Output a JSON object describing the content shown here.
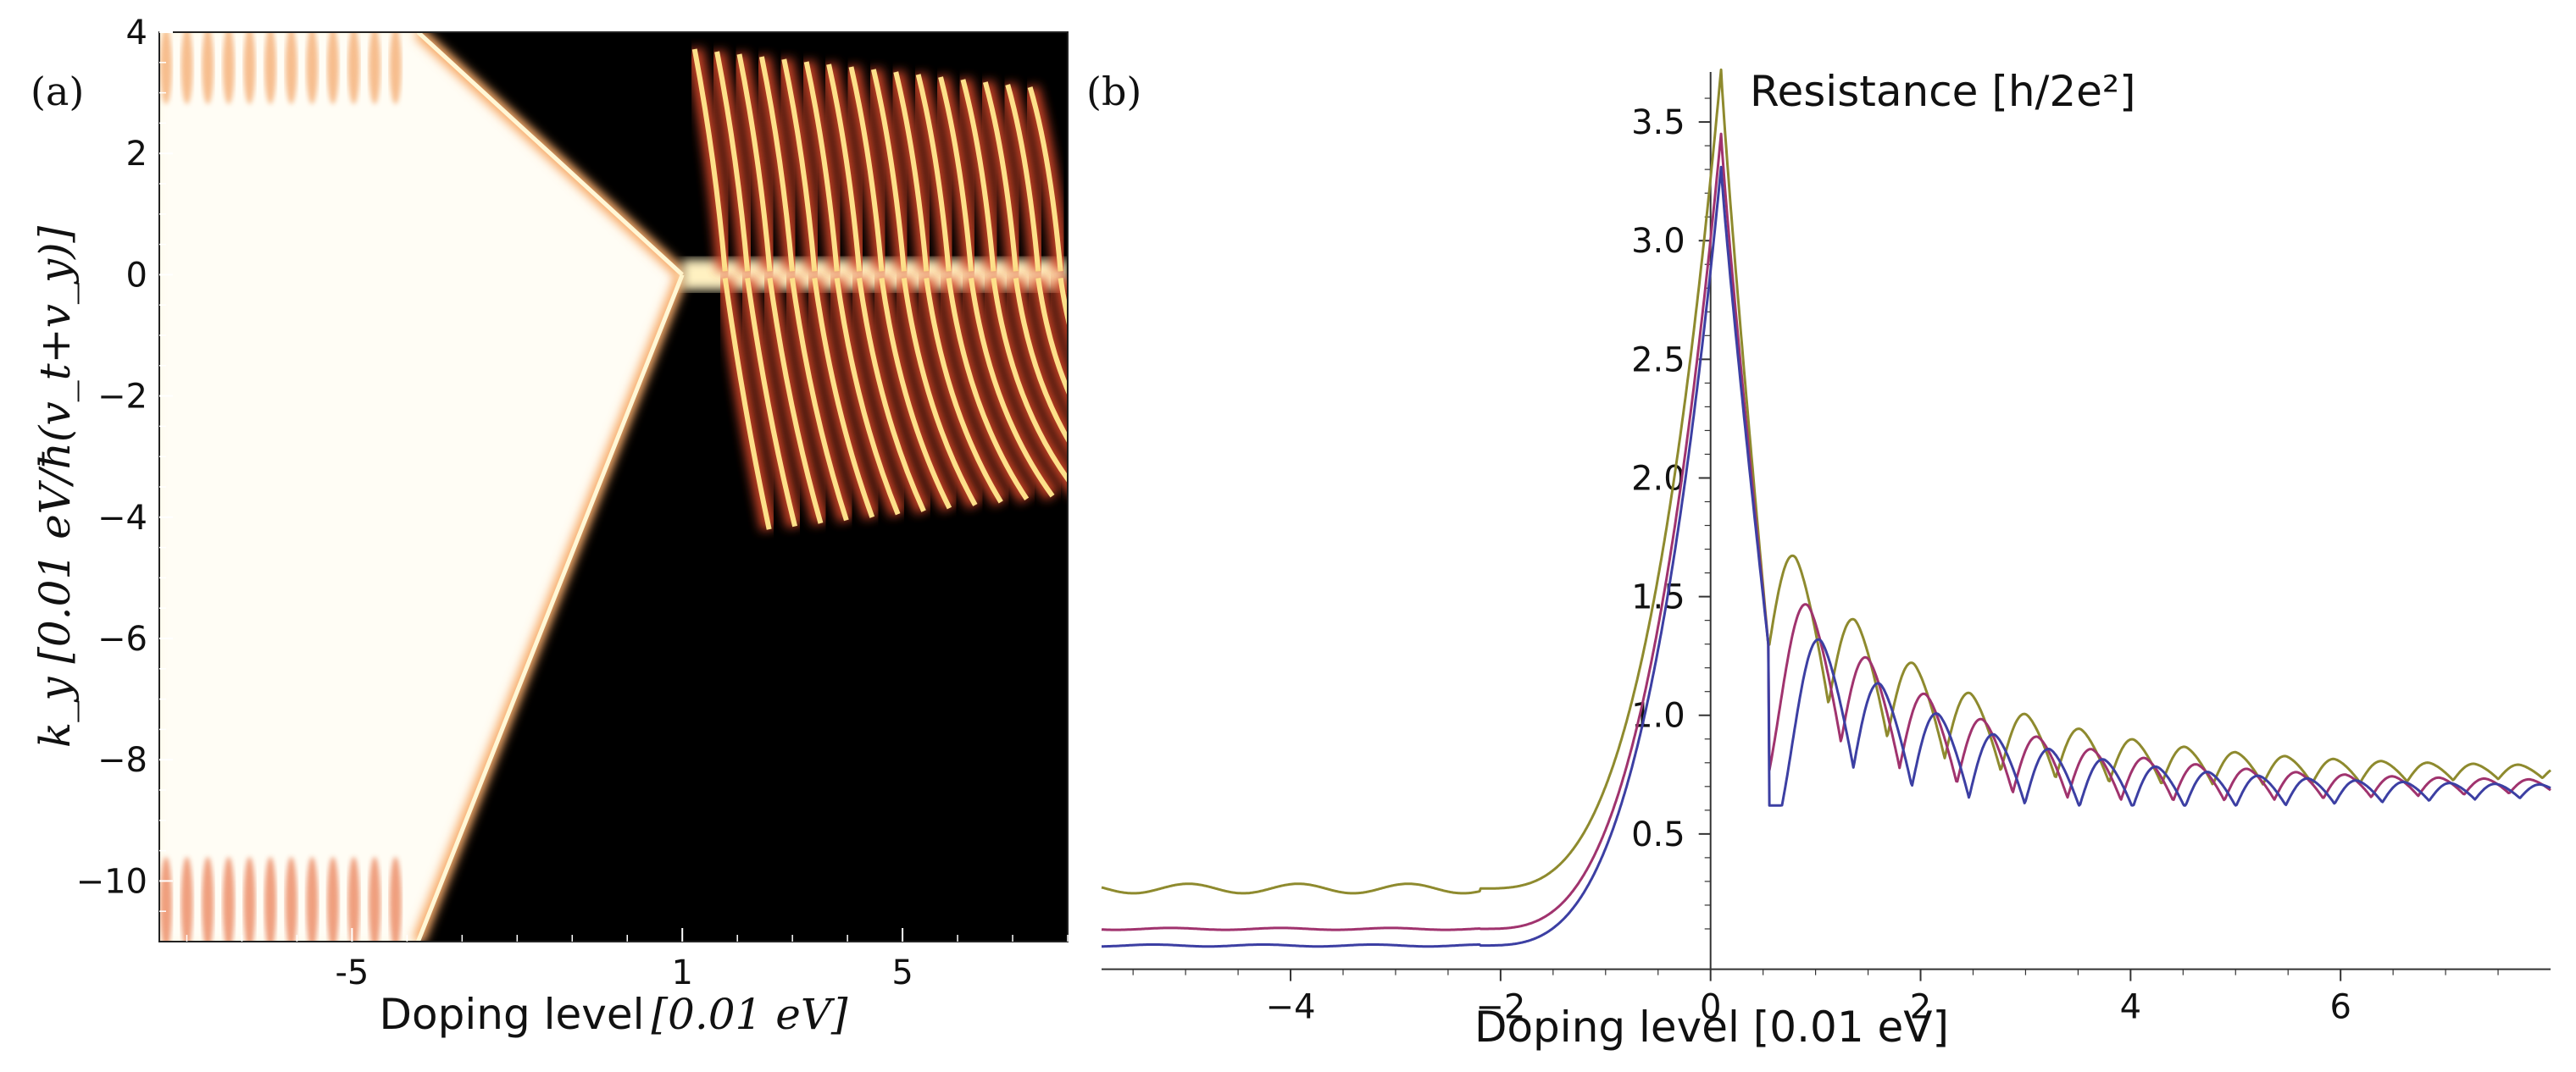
{
  "chart_data": [
    {
      "type": "heatmap",
      "panel_label": "(a)",
      "xlabel": "Doping level",
      "xlabel_unit": "[0.01 eV]",
      "ylabel": "k_y [0.01 eV/ħ(v_t+v_y)]",
      "xlim": [
        -8.5,
        8
      ],
      "ylim": [
        -11,
        4
      ],
      "x_ticks": [
        -5,
        1,
        5
      ],
      "y_ticks": [
        4,
        2,
        0,
        -2,
        -4,
        -6,
        -8,
        -10
      ],
      "x_tick_labels": [
        "-5",
        "1",
        "5"
      ],
      "y_tick_labels": [
        "4",
        "2",
        "0",
        "−2",
        "−4",
        "−6",
        "−8",
        "−10"
      ],
      "colormap": "inferno",
      "features": {
        "left_bright_region_edge_x": -3.8,
        "dirac_point": [
          1,
          0
        ],
        "upper_branch_end": [
          -3.8,
          4
        ],
        "lower_branch_end": [
          -3.8,
          -11
        ],
        "fan_lines_start_x": 1.5,
        "fan_lines_count": 16
      }
    },
    {
      "type": "line",
      "panel_label": "(b)",
      "title": "Resistance [h/2e²]",
      "xlabel": "Doping level [0.01 eV]",
      "xlim": [
        -5.8,
        8
      ],
      "ylim": [
        0,
        3.8
      ],
      "x_ticks": [
        -4,
        -2,
        0,
        2,
        4,
        6
      ],
      "y_ticks": [
        0.5,
        1.0,
        1.5,
        2.0,
        2.5,
        3.0,
        3.5
      ],
      "x_tick_labels": [
        "−4",
        "−2",
        "0",
        "2",
        "4",
        "6"
      ],
      "y_tick_labels": [
        "0.5",
        "1.0",
        "1.5",
        "2.0",
        "2.5",
        "3.0",
        "3.5"
      ],
      "series": [
        {
          "color": "#8e8a2e",
          "peak": 3.72,
          "floor": 0.27,
          "first_osc_peak": 1.82,
          "osc_end": 0.78
        },
        {
          "color": "#a0336e",
          "peak": 3.45,
          "floor": 0.1,
          "first_osc_peak": 1.66,
          "osc_end": 0.72
        },
        {
          "color": "#3c3fa3",
          "peak": 3.31,
          "floor": 0.03,
          "first_osc_peak": 1.54,
          "osc_end": 0.7
        }
      ]
    }
  ]
}
